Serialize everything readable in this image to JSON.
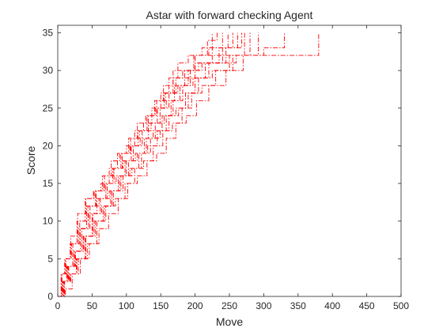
{
  "chart_data": {
    "type": "line",
    "title": "Astar with forward checking Agent",
    "xlabel": "Move",
    "ylabel": "Score",
    "xlim": [
      0,
      500
    ],
    "ylim": [
      0,
      36
    ],
    "xticks": [
      "0",
      "50",
      "100",
      "150",
      "200",
      "250",
      "300",
      "350",
      "400",
      "450",
      "500"
    ],
    "yticks": [
      "0",
      "5",
      "10",
      "15",
      "20",
      "25",
      "30",
      "35"
    ],
    "grid": false,
    "legend": "none",
    "line_style": "dash-dot",
    "line_color": "#ff0000",
    "series": [
      {
        "x": [
          0,
          5,
          10,
          18,
          28,
          40,
          52,
          63,
          75,
          87,
          100,
          112,
          125,
          137,
          150,
          162,
          175,
          190,
          210,
          225
        ],
        "y": [
          0,
          3,
          5,
          7,
          10,
          13,
          14,
          15,
          17,
          19,
          20,
          22,
          23,
          25,
          27,
          29,
          31,
          32,
          33,
          35
        ]
      },
      {
        "x": [
          0,
          7,
          13,
          22,
          33,
          45,
          57,
          70,
          82,
          95,
          107,
          120,
          132,
          145,
          158,
          170,
          185,
          200,
          220,
          240
        ],
        "y": [
          0,
          2,
          4,
          6,
          9,
          11,
          13,
          15,
          17,
          18,
          20,
          21,
          23,
          25,
          26,
          28,
          30,
          32,
          33,
          35
        ]
      },
      {
        "x": [
          0,
          8,
          15,
          25,
          37,
          50,
          62,
          75,
          88,
          100,
          113,
          126,
          139,
          152,
          165,
          178,
          193,
          210,
          235,
          255
        ],
        "y": [
          0,
          2,
          4,
          6,
          8,
          11,
          13,
          14,
          16,
          18,
          19,
          21,
          22,
          24,
          26,
          28,
          30,
          31,
          33,
          35
        ]
      },
      {
        "x": [
          0,
          6,
          12,
          20,
          30,
          42,
          55,
          67,
          80,
          92,
          105,
          117,
          130,
          142,
          155,
          168,
          182,
          198,
          218,
          232
        ],
        "y": [
          0,
          3,
          5,
          7,
          9,
          12,
          14,
          15,
          17,
          19,
          20,
          22,
          24,
          25,
          27,
          29,
          30,
          32,
          34,
          35
        ]
      },
      {
        "x": [
          0,
          9,
          17,
          27,
          40,
          53,
          66,
          79,
          92,
          105,
          118,
          131,
          145,
          158,
          172,
          186,
          200,
          220,
          245,
          268
        ],
        "y": [
          0,
          2,
          3,
          5,
          8,
          10,
          12,
          14,
          16,
          17,
          19,
          20,
          22,
          24,
          25,
          27,
          29,
          31,
          33,
          35
        ]
      },
      {
        "x": [
          0,
          10,
          19,
          30,
          43,
          57,
          70,
          84,
          98,
          112,
          125,
          139,
          153,
          167,
          181,
          195,
          210,
          230,
          255,
          280
        ],
        "y": [
          0,
          2,
          3,
          5,
          7,
          10,
          12,
          13,
          15,
          17,
          18,
          20,
          22,
          23,
          25,
          27,
          28,
          30,
          32,
          35
        ]
      },
      {
        "x": [
          0,
          7,
          14,
          24,
          35,
          47,
          60,
          72,
          85,
          98,
          110,
          123,
          136,
          149,
          162,
          175,
          190,
          205,
          225,
          248
        ],
        "y": [
          0,
          2,
          4,
          6,
          9,
          12,
          13,
          15,
          16,
          18,
          20,
          22,
          23,
          25,
          27,
          28,
          30,
          31,
          33,
          35
        ]
      },
      {
        "x": [
          0,
          11,
          21,
          33,
          46,
          60,
          74,
          88,
          102,
          116,
          130,
          144,
          158,
          172,
          187,
          202,
          220,
          245,
          270,
          292
        ],
        "y": [
          0,
          1,
          3,
          5,
          7,
          9,
          11,
          13,
          15,
          16,
          18,
          19,
          21,
          23,
          24,
          26,
          28,
          30,
          32,
          35
        ]
      },
      {
        "x": [
          0,
          8,
          16,
          26,
          38,
          51,
          64,
          77,
          90,
          103,
          116,
          129,
          142,
          155,
          168,
          182,
          197,
          215,
          240,
          262
        ],
        "y": [
          0,
          2,
          4,
          6,
          8,
          11,
          12,
          14,
          16,
          18,
          19,
          21,
          23,
          24,
          26,
          28,
          29,
          31,
          33,
          35
        ]
      },
      {
        "x": [
          0,
          6,
          13,
          22,
          32,
          44,
          56,
          68,
          81,
          94,
          106,
          119,
          132,
          144,
          157,
          172,
          200,
          260,
          300,
          330
        ],
        "y": [
          0,
          3,
          4,
          7,
          10,
          12,
          14,
          16,
          17,
          19,
          21,
          22,
          24,
          26,
          27,
          29,
          31,
          32,
          33,
          35
        ]
      },
      {
        "x": [
          0,
          9,
          18,
          28,
          41,
          55,
          68,
          81,
          95,
          108,
          122,
          135,
          149,
          162,
          176,
          190,
          205,
          225,
          250,
          272
        ],
        "y": [
          0,
          2,
          3,
          5,
          8,
          10,
          12,
          14,
          16,
          17,
          19,
          21,
          22,
          24,
          25,
          27,
          29,
          30,
          32,
          35
        ]
      },
      {
        "x": [
          0,
          5,
          11,
          19,
          29,
          41,
          53,
          65,
          78,
          90,
          103,
          116,
          128,
          141,
          154,
          168,
          200,
          300,
          370,
          380
        ],
        "y": [
          0,
          3,
          5,
          8,
          11,
          13,
          14,
          16,
          18,
          19,
          21,
          23,
          24,
          26,
          28,
          30,
          32,
          32,
          32,
          35
        ]
      }
    ]
  }
}
